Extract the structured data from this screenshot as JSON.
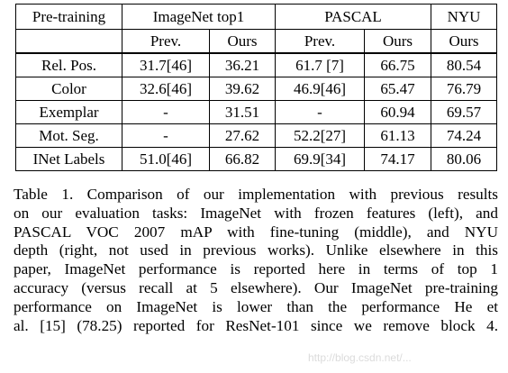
{
  "table": {
    "header": {
      "pretraining": "Pre-training",
      "imagenet": "ImageNet top1",
      "pascal": "PASCAL",
      "nyu": "NYU",
      "prev": "Prev.",
      "ours": "Ours"
    },
    "rows": [
      {
        "name": "Rel. Pos.",
        "imagenet_prev": "31.7[46]",
        "imagenet_ours": "36.21",
        "pascal_prev": "61.7 [7]",
        "pascal_ours": "66.75",
        "nyu_ours": "80.54"
      },
      {
        "name": "Color",
        "imagenet_prev": "32.6[46]",
        "imagenet_ours": "39.62",
        "pascal_prev": "46.9[46]",
        "pascal_ours": "65.47",
        "nyu_ours": "76.79"
      },
      {
        "name": "Exemplar",
        "imagenet_prev": "-",
        "imagenet_ours": "31.51",
        "pascal_prev": "-",
        "pascal_ours": "60.94",
        "nyu_ours": "69.57"
      },
      {
        "name": "Mot. Seg.",
        "imagenet_prev": "-",
        "imagenet_ours": "27.62",
        "pascal_prev": "52.2[27]",
        "pascal_ours": "61.13",
        "nyu_ours": "74.24"
      },
      {
        "name": "INet Labels",
        "imagenet_prev": "51.0[46]",
        "imagenet_ours": "66.82",
        "pascal_prev": "69.9[34]",
        "pascal_ours": "74.17",
        "nyu_ours": "80.06"
      }
    ]
  },
  "caption": {
    "lines": [
      "Table 1. Comparison of our implementation with previous results",
      "on our evaluation tasks: ImageNet with frozen features (left), and",
      "PASCAL VOC 2007 mAP with fine-tuning (middle), and NYU",
      "depth (right, not used in previous works). Unlike elsewhere in this",
      "paper, ImageNet performance is reported here in terms of top 1",
      "accuracy (versus recall at 5 elsewhere). Our ImageNet pre-training",
      "performance on ImageNet is lower than the performance He et",
      "al. [15] (78.25) reported for ResNet-101 since we remove block 4."
    ]
  },
  "watermark": "http://blog.csdn.net/..."
}
